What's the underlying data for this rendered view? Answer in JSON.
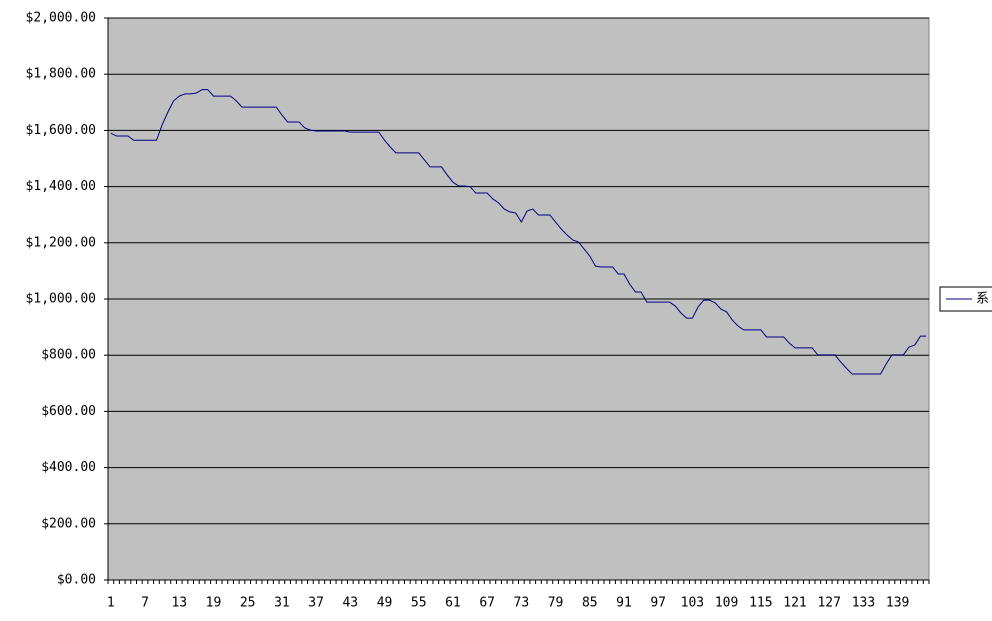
{
  "chart_data": {
    "type": "line",
    "categories": [
      1,
      null,
      null,
      null,
      null,
      null,
      7,
      null,
      null,
      null,
      null,
      null,
      13,
      null,
      null,
      null,
      null,
      null,
      19,
      null,
      null,
      null,
      null,
      null,
      25,
      null,
      null,
      null,
      null,
      null,
      31,
      null,
      null,
      null,
      null,
      null,
      37,
      null,
      null,
      null,
      null,
      null,
      43,
      null,
      null,
      null,
      null,
      null,
      49,
      null,
      null,
      null,
      null,
      null,
      55,
      null,
      null,
      null,
      null,
      null,
      61,
      null,
      null,
      null,
      null,
      null,
      67,
      null,
      null,
      null,
      null,
      null,
      73,
      null,
      null,
      null,
      null,
      null,
      79,
      null,
      null,
      null,
      null,
      null,
      85,
      null,
      null,
      null,
      null,
      null,
      91,
      null,
      null,
      null,
      null,
      null,
      97,
      null,
      null,
      null,
      null,
      null,
      103,
      null,
      null,
      null,
      null,
      null,
      109,
      null,
      null,
      null,
      null,
      null,
      115,
      null,
      null,
      null,
      null,
      null,
      121,
      null,
      null,
      null,
      null,
      null,
      127,
      null,
      null,
      null,
      null,
      null,
      133,
      null,
      null,
      null,
      null,
      null,
      139,
      null,
      null,
      null,
      null,
      null
    ],
    "series": [
      {
        "name": "系",
        "color": "#000080",
        "values": [
          1590,
          1580,
          1580,
          1580,
          1565,
          1565,
          1565,
          1565,
          1565,
          1620,
          1665,
          1705,
          1722,
          1730,
          1730,
          1733,
          1745,
          1745,
          1722,
          1722,
          1722,
          1722,
          1705,
          1683,
          1683,
          1683,
          1683,
          1683,
          1683,
          1683,
          1655,
          1630,
          1630,
          1630,
          1609,
          1601,
          1598,
          1598,
          1598,
          1598,
          1598,
          1598,
          1594,
          1594,
          1594,
          1594,
          1594,
          1594,
          1565,
          1541,
          1520,
          1520,
          1520,
          1520,
          1520,
          1495,
          1470,
          1470,
          1470,
          1441,
          1416,
          1402,
          1402,
          1400,
          1377,
          1377,
          1377,
          1356,
          1342,
          1320,
          1310,
          1306,
          1274,
          1313,
          1320,
          1299,
          1299,
          1299,
          1274,
          1249,
          1228,
          1210,
          1203,
          1178,
          1153,
          1117,
          1114,
          1114,
          1114,
          1089,
          1089,
          1053,
          1025,
          1025,
          989,
          989,
          989,
          989,
          989,
          975,
          950,
          932,
          932,
          972,
          996,
          996,
          986,
          964,
          954,
          925,
          904,
          890,
          890,
          890,
          890,
          865,
          865,
          865,
          865,
          843,
          826,
          826,
          826,
          826,
          801,
          801,
          801,
          801,
          776,
          754,
          733,
          733,
          733,
          733,
          733,
          733,
          769,
          801,
          801,
          801,
          829,
          836,
          868,
          868
        ]
      }
    ],
    "ylim": [
      0,
      2000
    ],
    "yticks": [
      {
        "value": 0,
        "label": "$0.00"
      },
      {
        "value": 200,
        "label": "$200.00"
      },
      {
        "value": 400,
        "label": "$400.00"
      },
      {
        "value": 600,
        "label": "$600.00"
      },
      {
        "value": 800,
        "label": "$800.00"
      },
      {
        "value": 1000,
        "label": "$1,000.00"
      },
      {
        "value": 1200,
        "label": "$1,200.00"
      },
      {
        "value": 1400,
        "label": "$1,400.00"
      },
      {
        "value": 1600,
        "label": "$1,600.00"
      },
      {
        "value": 1800,
        "label": "$1,800.00"
      },
      {
        "value": 2000,
        "label": "$2,000.00"
      }
    ],
    "grid": true,
    "plot_color": "#c0c0c0",
    "legend": "right"
  }
}
